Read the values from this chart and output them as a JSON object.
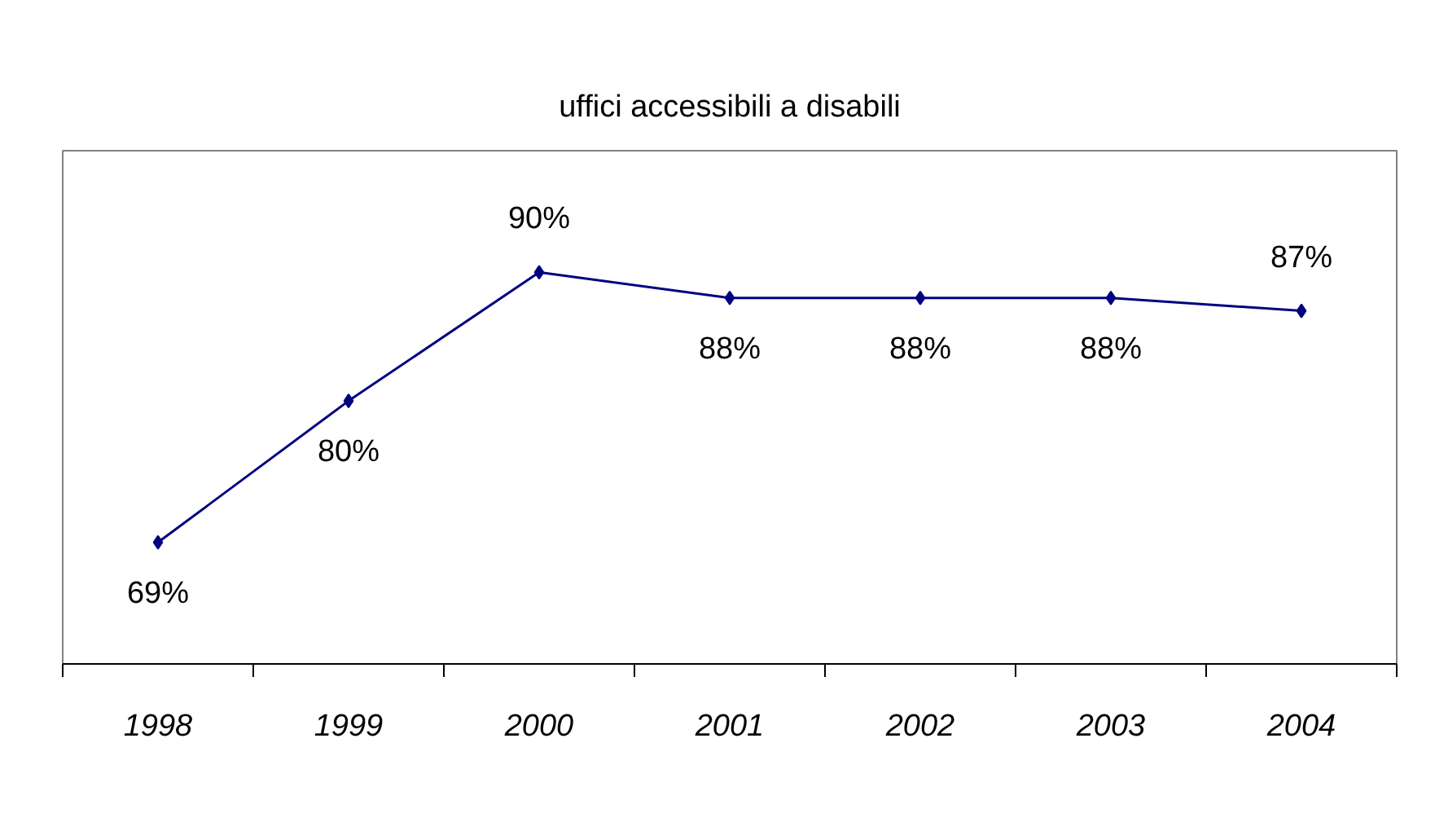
{
  "chart_data": {
    "type": "line",
    "title": "uffici accessibili a disabili",
    "categories": [
      "1998",
      "1999",
      "2000",
      "2001",
      "2002",
      "2003",
      "2004"
    ],
    "series": [
      {
        "color": "#000080",
        "values": [
          69,
          80,
          90,
          88,
          88,
          88,
          87
        ],
        "value_labels": [
          "69%",
          "80%",
          "90%",
          "88%",
          "88%",
          "88%",
          "87%"
        ]
      }
    ],
    "marker": "diamond",
    "line_style": "solid",
    "grid": false,
    "tick_labels": "x"
  }
}
